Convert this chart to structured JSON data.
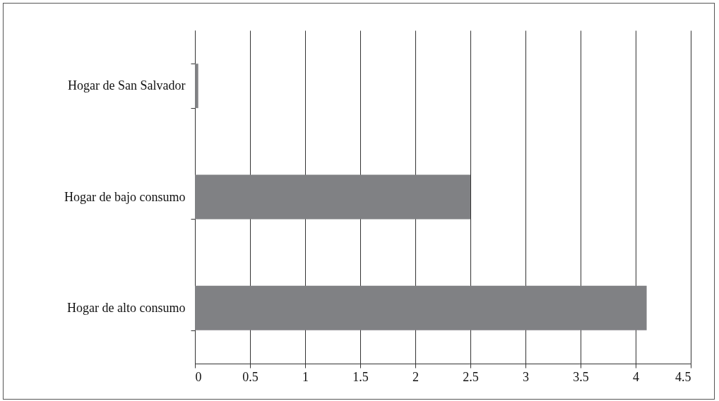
{
  "chart_data": {
    "type": "bar",
    "orientation": "horizontal",
    "categories": [
      "Hogar de San Salvador",
      "Hogar de bajo consumo",
      "Hogar de alto consumo"
    ],
    "values": [
      0.03,
      2.5,
      4.1
    ],
    "color": "#808184",
    "xlim": [
      0,
      4.5
    ],
    "xticks": [
      0,
      0.5,
      1,
      1.5,
      2,
      2.5,
      3,
      3.5,
      4,
      4.5
    ],
    "grid": "x"
  }
}
